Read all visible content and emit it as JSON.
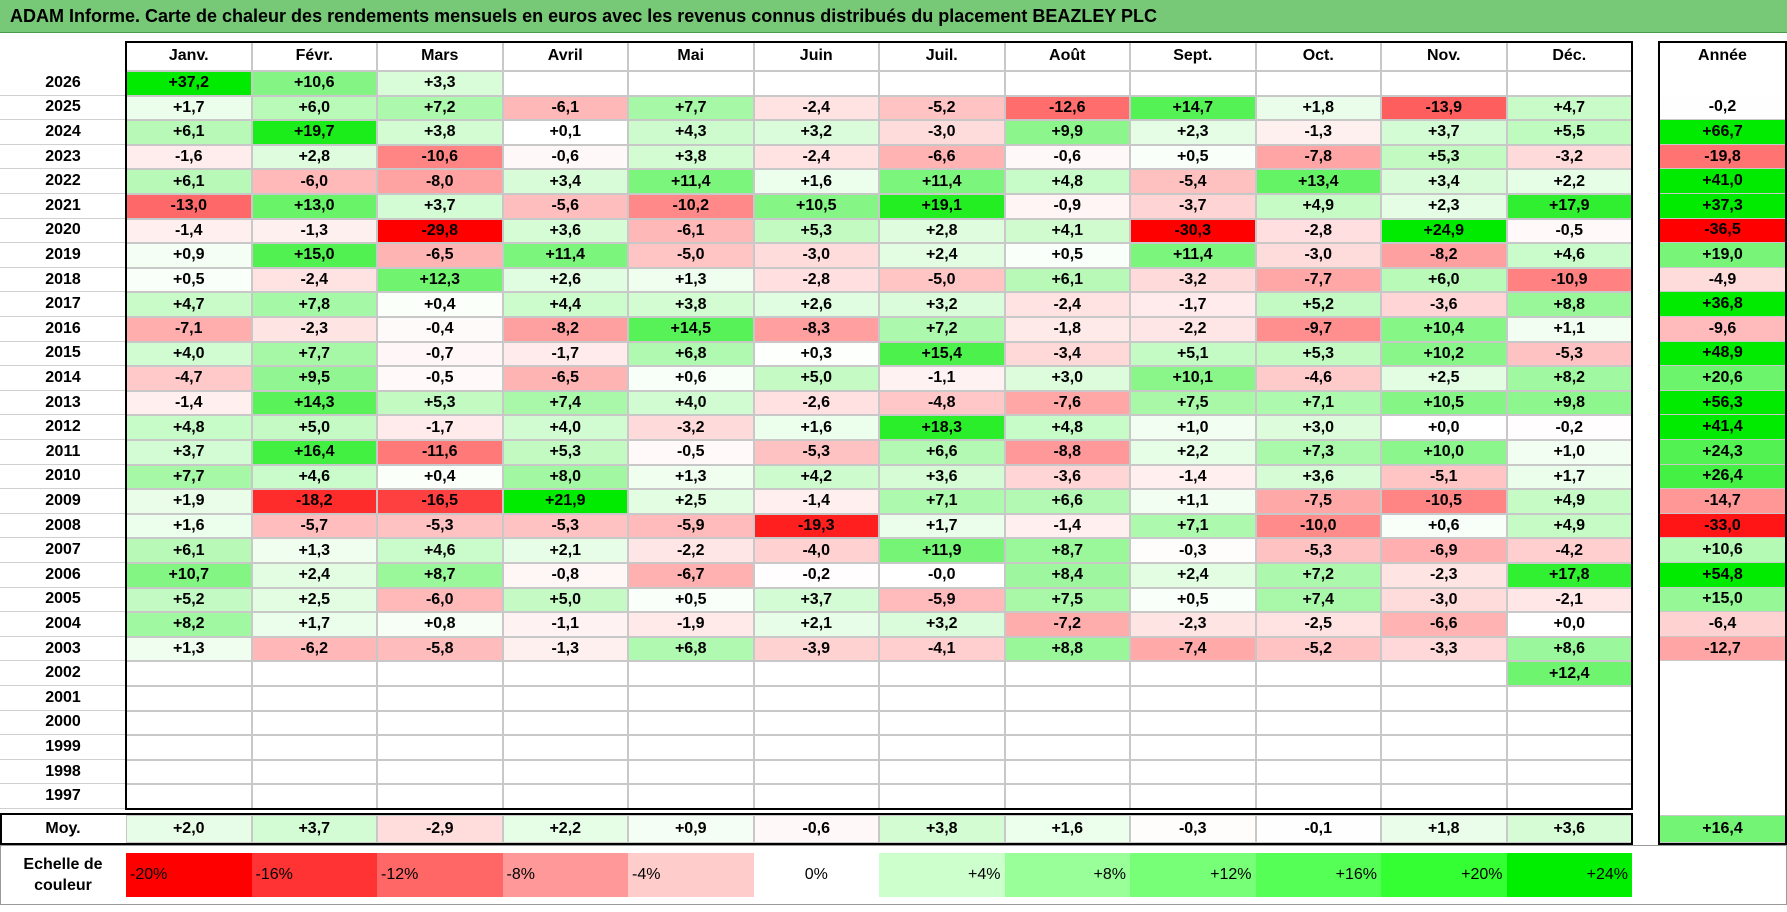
{
  "title": "ADAM Informe. Carte de chaleur des rendements mensuels en euros avec les revenus connus distribués du placement BEAZLEY PLC",
  "chart_data": {
    "type": "heatmap",
    "title": "ADAM Informe. Carte de chaleur des rendements mensuels en euros avec les revenus connus distribués du placement BEAZLEY PLC",
    "columns": [
      "Janv.",
      "Févr.",
      "Mars",
      "Avril",
      "Mai",
      "Juin",
      "Juil.",
      "Août",
      "Sept.",
      "Oct.",
      "Nov.",
      "Déc."
    ],
    "year_header": "Année",
    "rows": [
      {
        "year": "2026",
        "months": [
          "+37,2",
          "+10,6",
          "+3,3",
          "",
          "",
          "",
          "",
          "",
          "",
          "",
          "",
          ""
        ],
        "annual": ""
      },
      {
        "year": "2025",
        "months": [
          "+1,7",
          "+6,0",
          "+7,2",
          "-6,1",
          "+7,7",
          "-2,4",
          "-5,2",
          "-12,6",
          "+14,7",
          "+1,8",
          "-13,9",
          "+4,7"
        ],
        "annual": "-0,2"
      },
      {
        "year": "2024",
        "months": [
          "+6,1",
          "+19,7",
          "+3,8",
          "+0,1",
          "+4,3",
          "+3,2",
          "-3,0",
          "+9,9",
          "+2,3",
          "-1,3",
          "+3,7",
          "+5,5"
        ],
        "annual": "+66,7"
      },
      {
        "year": "2023",
        "months": [
          "-1,6",
          "+2,8",
          "-10,6",
          "-0,6",
          "+3,8",
          "-2,4",
          "-6,6",
          "-0,6",
          "+0,5",
          "-7,8",
          "+5,3",
          "-3,2"
        ],
        "annual": "-19,8"
      },
      {
        "year": "2022",
        "months": [
          "+6,1",
          "-6,0",
          "-8,0",
          "+3,4",
          "+11,4",
          "+1,6",
          "+11,4",
          "+4,8",
          "-5,4",
          "+13,4",
          "+3,4",
          "+2,2"
        ],
        "annual": "+41,0"
      },
      {
        "year": "2021",
        "months": [
          "-13,0",
          "+13,0",
          "+3,7",
          "-5,6",
          "-10,2",
          "+10,5",
          "+19,1",
          "-0,9",
          "-3,7",
          "+4,9",
          "+2,3",
          "+17,9"
        ],
        "annual": "+37,3"
      },
      {
        "year": "2020",
        "months": [
          "-1,4",
          "-1,3",
          "-29,8",
          "+3,6",
          "-6,1",
          "+5,3",
          "+2,8",
          "+4,1",
          "-30,3",
          "-2,8",
          "+24,9",
          "-0,5"
        ],
        "annual": "-36,5"
      },
      {
        "year": "2019",
        "months": [
          "+0,9",
          "+15,0",
          "-6,5",
          "+11,4",
          "-5,0",
          "-3,0",
          "+2,4",
          "+0,5",
          "+11,4",
          "-3,0",
          "-8,2",
          "+4,6"
        ],
        "annual": "+19,0"
      },
      {
        "year": "2018",
        "months": [
          "+0,5",
          "-2,4",
          "+12,3",
          "+2,6",
          "+1,3",
          "-2,8",
          "-5,0",
          "+6,1",
          "-3,2",
          "-7,7",
          "+6,0",
          "-10,9"
        ],
        "annual": "-4,9"
      },
      {
        "year": "2017",
        "months": [
          "+4,7",
          "+7,8",
          "+0,4",
          "+4,4",
          "+3,8",
          "+2,6",
          "+3,2",
          "-2,4",
          "-1,7",
          "+5,2",
          "-3,6",
          "+8,8"
        ],
        "annual": "+36,8"
      },
      {
        "year": "2016",
        "months": [
          "-7,1",
          "-2,3",
          "-0,4",
          "-8,2",
          "+14,5",
          "-8,3",
          "+7,2",
          "-1,8",
          "-2,2",
          "-9,7",
          "+10,4",
          "+1,1"
        ],
        "annual": "-9,6"
      },
      {
        "year": "2015",
        "months": [
          "+4,0",
          "+7,7",
          "-0,7",
          "-1,7",
          "+6,8",
          "+0,3",
          "+15,4",
          "-3,4",
          "+5,1",
          "+5,3",
          "+10,2",
          "-5,3"
        ],
        "annual": "+48,9"
      },
      {
        "year": "2014",
        "months": [
          "-4,7",
          "+9,5",
          "-0,5",
          "-6,5",
          "+0,6",
          "+5,0",
          "-1,1",
          "+3,0",
          "+10,1",
          "-4,6",
          "+2,5",
          "+8,2"
        ],
        "annual": "+20,6"
      },
      {
        "year": "2013",
        "months": [
          "-1,4",
          "+14,3",
          "+5,3",
          "+7,4",
          "+4,0",
          "-2,6",
          "-4,8",
          "-7,6",
          "+7,5",
          "+7,1",
          "+10,5",
          "+9,8"
        ],
        "annual": "+56,3"
      },
      {
        "year": "2012",
        "months": [
          "+4,8",
          "+5,0",
          "-1,7",
          "+4,0",
          "-3,2",
          "+1,6",
          "+18,3",
          "+4,8",
          "+1,0",
          "+3,0",
          "+0,0",
          "-0,2"
        ],
        "annual": "+41,4"
      },
      {
        "year": "2011",
        "months": [
          "+3,7",
          "+16,4",
          "-11,6",
          "+5,3",
          "-0,5",
          "-5,3",
          "+6,6",
          "-8,8",
          "+2,2",
          "+7,3",
          "+10,0",
          "+1,0"
        ],
        "annual": "+24,3"
      },
      {
        "year": "2010",
        "months": [
          "+7,7",
          "+4,6",
          "+0,4",
          "+8,0",
          "+1,3",
          "+4,2",
          "+3,6",
          "-3,6",
          "-1,4",
          "+3,6",
          "-5,1",
          "+1,7"
        ],
        "annual": "+26,4"
      },
      {
        "year": "2009",
        "months": [
          "+1,9",
          "-18,2",
          "-16,5",
          "+21,9",
          "+2,5",
          "-1,4",
          "+7,1",
          "+6,6",
          "+1,1",
          "-7,5",
          "-10,5",
          "+4,9"
        ],
        "annual": "-14,7"
      },
      {
        "year": "2008",
        "months": [
          "+1,6",
          "-5,7",
          "-5,3",
          "-5,3",
          "-5,9",
          "-19,3",
          "+1,7",
          "-1,4",
          "+7,1",
          "-10,0",
          "+0,6",
          "+4,9"
        ],
        "annual": "-33,0"
      },
      {
        "year": "2007",
        "months": [
          "+6,1",
          "+1,3",
          "+4,6",
          "+2,1",
          "-2,2",
          "-4,0",
          "+11,9",
          "+8,7",
          "-0,3",
          "-5,3",
          "-6,9",
          "-4,2"
        ],
        "annual": "+10,6"
      },
      {
        "year": "2006",
        "months": [
          "+10,7",
          "+2,4",
          "+8,7",
          "-0,8",
          "-6,7",
          "-0,2",
          "-0,0",
          "+8,4",
          "+2,4",
          "+7,2",
          "-2,3",
          "+17,8"
        ],
        "annual": "+54,8"
      },
      {
        "year": "2005",
        "months": [
          "+5,2",
          "+2,5",
          "-6,0",
          "+5,0",
          "+0,5",
          "+3,7",
          "-5,9",
          "+7,5",
          "+0,5",
          "+7,4",
          "-3,0",
          "-2,1"
        ],
        "annual": "+15,0"
      },
      {
        "year": "2004",
        "months": [
          "+8,2",
          "+1,7",
          "+0,8",
          "-1,1",
          "-1,9",
          "+2,1",
          "+3,2",
          "-7,2",
          "-2,3",
          "-2,5",
          "-6,6",
          "+0,0"
        ],
        "annual": "-6,4"
      },
      {
        "year": "2003",
        "months": [
          "+1,3",
          "-6,2",
          "-5,8",
          "-1,3",
          "+6,8",
          "-3,9",
          "-4,1",
          "+8,8",
          "-7,4",
          "-5,2",
          "-3,3",
          "+8,6"
        ],
        "annual": "-12,7"
      },
      {
        "year": "2002",
        "months": [
          "",
          "",
          "",
          "",
          "",
          "",
          "",
          "",
          "",
          "",
          "",
          "+12,4"
        ],
        "annual": ""
      },
      {
        "year": "2001",
        "months": [
          "",
          "",
          "",
          "",
          "",
          "",
          "",
          "",
          "",
          "",
          "",
          ""
        ],
        "annual": ""
      },
      {
        "year": "2000",
        "months": [
          "",
          "",
          "",
          "",
          "",
          "",
          "",
          "",
          "",
          "",
          "",
          ""
        ],
        "annual": ""
      },
      {
        "year": "1999",
        "months": [
          "",
          "",
          "",
          "",
          "",
          "",
          "",
          "",
          "",
          "",
          "",
          ""
        ],
        "annual": ""
      },
      {
        "year": "1998",
        "months": [
          "",
          "",
          "",
          "",
          "",
          "",
          "",
          "",
          "",
          "",
          "",
          ""
        ],
        "annual": ""
      },
      {
        "year": "1997",
        "months": [
          "",
          "",
          "",
          "",
          "",
          "",
          "",
          "",
          "",
          "",
          "",
          ""
        ],
        "annual": ""
      }
    ],
    "average": {
      "label": "Moy.",
      "months": [
        "+2,0",
        "+3,7",
        "-2,9",
        "+2,2",
        "+0,9",
        "-0,6",
        "+3,8",
        "+1,6",
        "-0,3",
        "-0,1",
        "+1,8",
        "+3,6"
      ],
      "annual": "+16,4"
    },
    "legend": {
      "label_line1": "Echelle de",
      "label_line2": "couleur",
      "stops": [
        "-20%",
        "-16%",
        "-12%",
        "-8%",
        "-4%",
        "0%",
        "+4%",
        "+8%",
        "+12%",
        "+16%",
        "+20%",
        "+24%"
      ],
      "stop_colors": [
        "#ff0000",
        "#ff3333",
        "#ff6666",
        "#ff9999",
        "#ffcccc",
        "#ffffff",
        "#ccffcc",
        "#99ff99",
        "#77ff77",
        "#55ff55",
        "#33ff33",
        "#00ee00"
      ]
    }
  }
}
